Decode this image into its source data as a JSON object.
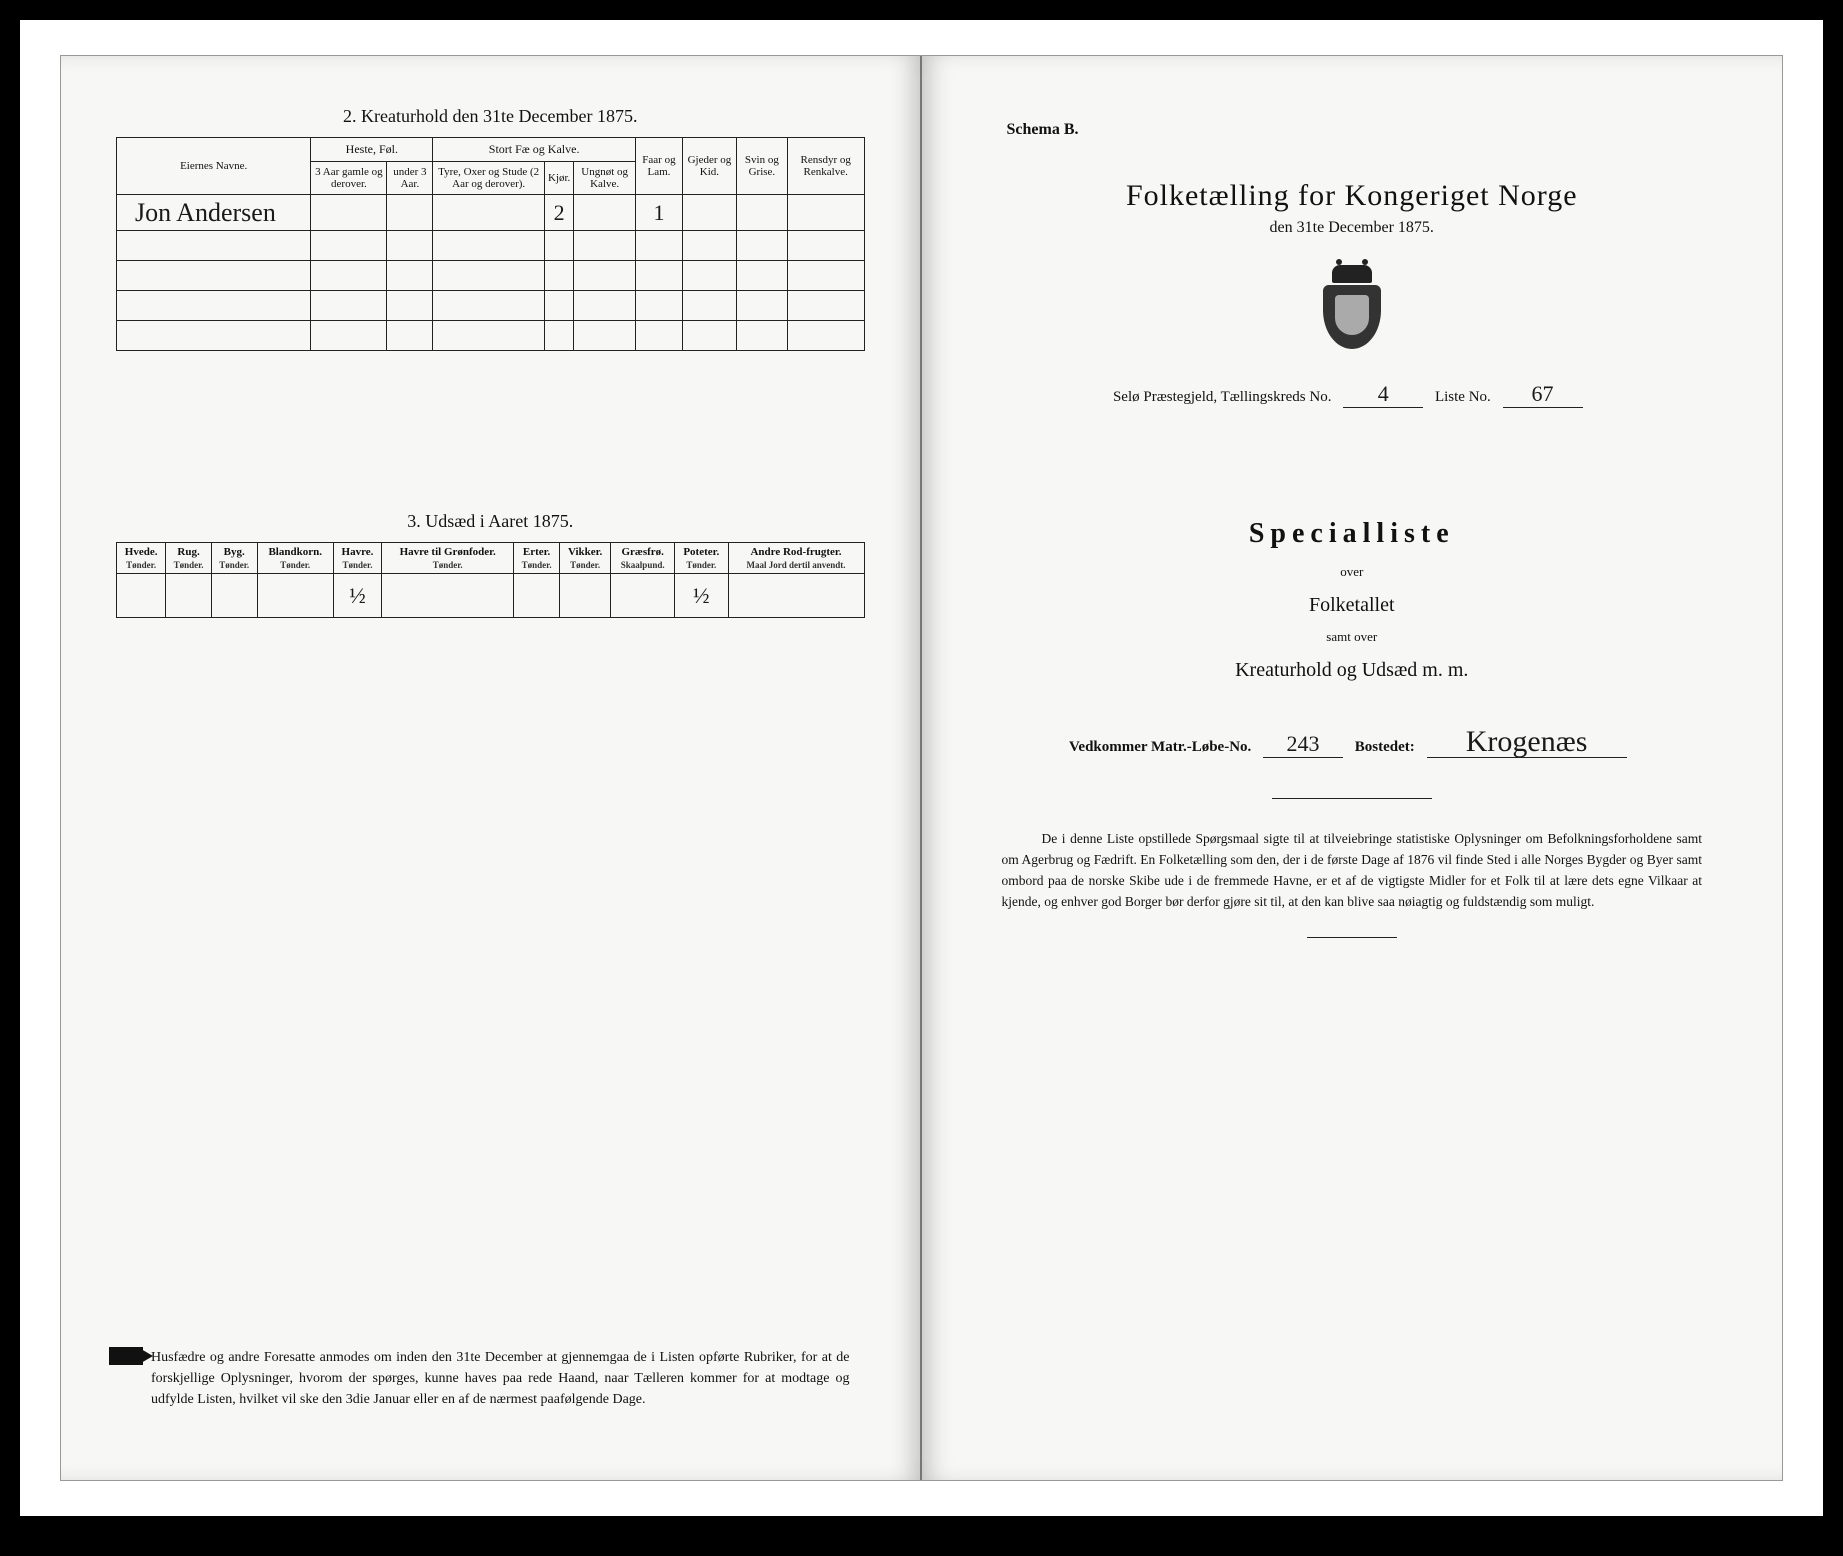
{
  "leftPage": {
    "section2": {
      "title": "2.   Kreaturhold den 31te December 1875.",
      "columns": {
        "ownerName": "Eiernes Navne.",
        "groupHorses": "Heste, Føl.",
        "horses3plus": "3 Aar gamle og derover.",
        "horsesUnder3": "under 3 Aar.",
        "groupCattle": "Stort Fæ og Kalve.",
        "cattleTyre": "Tyre, Oxer og Stude (2 Aar og derover).",
        "cattleKjor": "Kjør.",
        "cattleUngnot": "Ungnøt og Kalve.",
        "sheep": "Faar og Lam.",
        "goats": "Gjeder og Kid.",
        "pigs": "Svin og Grise.",
        "reindeer": "Rensdyr og Renkalve."
      },
      "rows": [
        {
          "owner": "Jon Andersen",
          "kjor": "2",
          "sheep": "1"
        }
      ],
      "emptyRows": 4
    },
    "section3": {
      "title": "3.   Udsæd i Aaret 1875.",
      "columns": [
        {
          "label": "Hvede.",
          "sub": "Tønder."
        },
        {
          "label": "Rug.",
          "sub": "Tønder."
        },
        {
          "label": "Byg.",
          "sub": "Tønder."
        },
        {
          "label": "Blandkorn.",
          "sub": "Tønder."
        },
        {
          "label": "Havre.",
          "sub": "Tønder."
        },
        {
          "label": "Havre til Grønfoder.",
          "sub": "Tønder."
        },
        {
          "label": "Erter.",
          "sub": "Tønder."
        },
        {
          "label": "Vikker.",
          "sub": "Tønder."
        },
        {
          "label": "Græsfrø.",
          "sub": "Skaalpund."
        },
        {
          "label": "Poteter.",
          "sub": "Tønder."
        },
        {
          "label": "Andre Rod-frugter.",
          "sub": "Maal Jord dertil anvendt."
        }
      ],
      "rows": [
        {
          "havre": "½",
          "poteter": "½"
        }
      ]
    },
    "footerNote": "Husfædre og andre Foresatte anmodes om inden den 31te December at gjennemgaa de i Listen opførte Rubriker, for at de forskjellige Oplysninger, hvorom der spørges, kunne haves paa rede Haand, naar Tælleren kommer for at modtage og udfylde Listen, hvilket vil ske den 3die Januar eller en af de nærmest paafølgende Dage."
  },
  "rightPage": {
    "schema": "Schema B.",
    "mainTitle": "Folketælling for Kongeriget Norge",
    "mainDate": "den 31te December 1875.",
    "presteLine": {
      "prefix": "Selø Præstegjeld,  Tællingskreds No.",
      "kredsNo": "4",
      "listeLabel": "Liste No.",
      "listeNo": "67"
    },
    "specialTitle": "Specialliste",
    "over": "over",
    "folketallet": "Folketallet",
    "samtOver": "samt over",
    "kreaturLine": "Kreaturhold og Udsæd m. m.",
    "vedk": {
      "label": "Vedkommer Matr.-Løbe-No.",
      "no": "243",
      "bostedetLabel": "Bostedet:",
      "bostedet": "Krogenæs"
    },
    "footer": "De i denne Liste opstillede Spørgsmaal sigte til at tilveiebringe statistiske Oplysninger om Befolkningsforholdene samt om Agerbrug og Fædrift. En Folketælling som den, der i de første Dage af 1876 vil finde Sted i alle Norges Bygder og Byer samt ombord paa de norske Skibe ude i de fremmede Havne, er et af de vigtigste Midler for et Folk til at lære dets egne Vilkaar at kjende, og enhver god Borger bør derfor gjøre sit til, at den kan blive saa nøiagtig og fuldstændig som muligt."
  },
  "colors": {
    "pageBg": "#f7f7f5",
    "ink": "#111111",
    "border": "#222222"
  }
}
